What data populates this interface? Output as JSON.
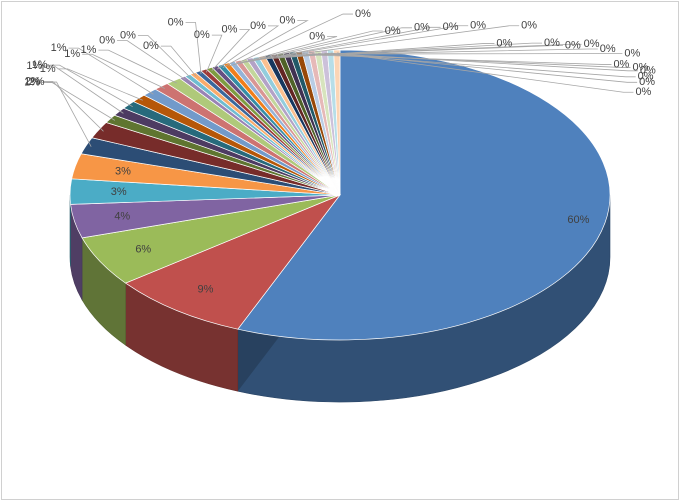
{
  "chart_data": {
    "type": "pie",
    "style": "3d-exploded-leader-lines",
    "units": "percent",
    "slices": [
      {
        "label": "60%",
        "value": 60,
        "color": "#4f81bd"
      },
      {
        "label": "9%",
        "value": 9,
        "color": "#c0504d"
      },
      {
        "label": "6%",
        "value": 6,
        "color": "#9bbb59"
      },
      {
        "label": "4%",
        "value": 4,
        "color": "#8064a2"
      },
      {
        "label": "3%",
        "value": 3,
        "color": "#4bacc6"
      },
      {
        "label": "3%",
        "value": 3,
        "color": "#f79646"
      },
      {
        "label": "2%",
        "value": 2,
        "color": "#2c4d75"
      },
      {
        "label": "2%",
        "value": 2,
        "color": "#772c2a"
      },
      {
        "label": "1%",
        "value": 1,
        "color": "#5f7530"
      },
      {
        "label": "1%",
        "value": 1,
        "color": "#4d3b62"
      },
      {
        "label": "1%",
        "value": 1,
        "color": "#276a7c"
      },
      {
        "label": "1%",
        "value": 1,
        "color": "#b65708"
      },
      {
        "label": "1%",
        "value": 1,
        "color": "#729aca"
      },
      {
        "label": "1%",
        "value": 1,
        "color": "#cd7371"
      },
      {
        "label": "1%",
        "value": 1,
        "color": "#afc97a"
      },
      {
        "label": "0%",
        "value": 0.4,
        "color": "#9983b5"
      },
      {
        "label": "0%",
        "value": 0.4,
        "color": "#6fbdd1"
      },
      {
        "label": "0%",
        "value": 0.4,
        "color": "#f9ab6b"
      },
      {
        "label": "0%",
        "value": 0.4,
        "color": "#3a679c"
      },
      {
        "label": "0%",
        "value": 0.4,
        "color": "#9d3b38"
      },
      {
        "label": "0%",
        "value": 0.4,
        "color": "#7e9c40"
      },
      {
        "label": "0%",
        "value": 0.4,
        "color": "#664f83"
      },
      {
        "label": "0%",
        "value": 0.4,
        "color": "#358ea6"
      },
      {
        "label": "0%",
        "value": 0.4,
        "color": "#f07e1a"
      },
      {
        "label": "0%",
        "value": 0.4,
        "color": "#95b3d7"
      },
      {
        "label": "0%",
        "value": 0.4,
        "color": "#d99694"
      },
      {
        "label": "0%",
        "value": 0.4,
        "color": "#c3d69b"
      },
      {
        "label": "0%",
        "value": 0.4,
        "color": "#b3a2c7"
      },
      {
        "label": "0%",
        "value": 0.4,
        "color": "#93cddd"
      },
      {
        "label": "0%",
        "value": 0.4,
        "color": "#fac090"
      },
      {
        "label": "0%",
        "value": 0.4,
        "color": "#17375e"
      },
      {
        "label": "0%",
        "value": 0.4,
        "color": "#632523"
      },
      {
        "label": "0%",
        "value": 0.4,
        "color": "#4f6228"
      },
      {
        "label": "0%",
        "value": 0.4,
        "color": "#403152"
      },
      {
        "label": "0%",
        "value": 0.4,
        "color": "#215968"
      },
      {
        "label": "0%",
        "value": 0.4,
        "color": "#984807"
      },
      {
        "label": "0%",
        "value": 0.4,
        "color": "#b9cde5"
      },
      {
        "label": "0%",
        "value": 0.4,
        "color": "#e6b9b8"
      },
      {
        "label": "0%",
        "value": 0.4,
        "color": "#d7e4bd"
      },
      {
        "label": "0%",
        "value": 0.4,
        "color": "#ccc1da"
      },
      {
        "label": "0%",
        "value": 0.4,
        "color": "#b7dee8"
      },
      {
        "label": "0%",
        "value": 0.4,
        "color": "#fcd5b5"
      }
    ]
  }
}
